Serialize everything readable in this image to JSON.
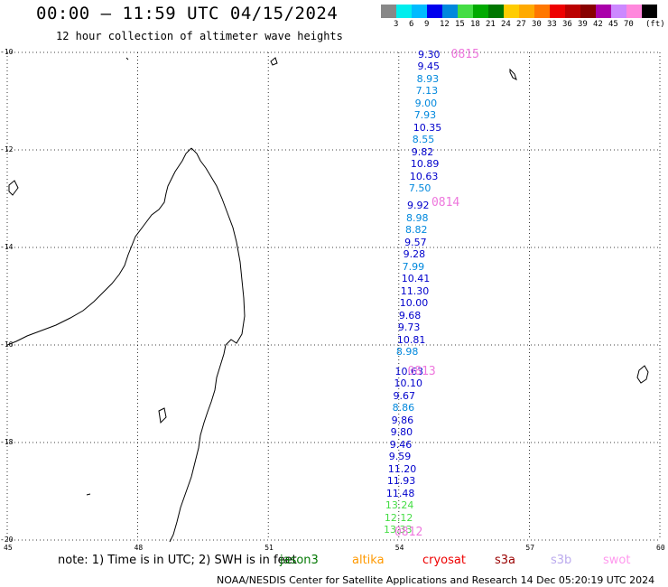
{
  "header": {
    "title": "00:00 — 11:59 UTC 04/15/2024",
    "subtitle": "12 hour collection of altimeter wave heights"
  },
  "scale": {
    "colors": [
      "#888888",
      "#00eeee",
      "#00bbff",
      "#0000ee",
      "#0088dd",
      "#44dd44",
      "#00aa00",
      "#007700",
      "#ffcc00",
      "#ffaa00",
      "#ff7700",
      "#ee0000",
      "#bb0000",
      "#880000",
      "#aa00aa",
      "#cc88ff",
      "#ff88dd",
      "#000000"
    ],
    "labels": [
      "3",
      "6",
      "9",
      "12",
      "15",
      "18",
      "21",
      "24",
      "27",
      "30",
      "33",
      "36",
      "39",
      "42",
      "45",
      "70",
      "(ft)"
    ]
  },
  "axes": {
    "x_ticks": [
      "45",
      "48",
      "51",
      "54",
      "57",
      "60"
    ],
    "y_ticks": [
      "-10",
      "-12",
      "-14",
      "-16",
      "-18",
      "-20"
    ]
  },
  "map_data": {
    "lon_range": [
      45,
      60
    ],
    "lat_range": [
      -20,
      -10
    ],
    "pass_labels": [
      {
        "text": "0815",
        "lon": 55.2,
        "lat": -10.05
      },
      {
        "text": "0814",
        "lon": 54.75,
        "lat": -13.1
      },
      {
        "text": "0813",
        "lon": 54.2,
        "lat": -16.55
      },
      {
        "text": "0812",
        "lon": 53.9,
        "lat": -19.85
      }
    ],
    "swh_points": [
      {
        "v": "9.30",
        "lon": 54.98,
        "lat": -10.05,
        "c": "#0000cc"
      },
      {
        "v": "9.45",
        "lon": 54.97,
        "lat": -10.3,
        "c": "#0000cc"
      },
      {
        "v": "8.93",
        "lon": 54.95,
        "lat": -10.55,
        "c": "#0088dd"
      },
      {
        "v": "7.13",
        "lon": 54.93,
        "lat": -10.8,
        "c": "#0088dd"
      },
      {
        "v": "9.00",
        "lon": 54.91,
        "lat": -11.05,
        "c": "#0088dd"
      },
      {
        "v": "7.93",
        "lon": 54.89,
        "lat": -11.3,
        "c": "#0088dd"
      },
      {
        "v": "10.35",
        "lon": 54.87,
        "lat": -11.55,
        "c": "#0000cc"
      },
      {
        "v": "8.55",
        "lon": 54.85,
        "lat": -11.8,
        "c": "#0088dd"
      },
      {
        "v": "9.82",
        "lon": 54.83,
        "lat": -12.05,
        "c": "#0000cc"
      },
      {
        "v": "10.89",
        "lon": 54.81,
        "lat": -12.3,
        "c": "#0000cc"
      },
      {
        "v": "10.63",
        "lon": 54.79,
        "lat": -12.55,
        "c": "#0000cc"
      },
      {
        "v": "7.50",
        "lon": 54.77,
        "lat": -12.8,
        "c": "#0088dd"
      },
      {
        "v": "9.92",
        "lon": 54.73,
        "lat": -13.15,
        "c": "#0000cc"
      },
      {
        "v": "8.98",
        "lon": 54.71,
        "lat": -13.4,
        "c": "#0088dd"
      },
      {
        "v": "8.82",
        "lon": 54.69,
        "lat": -13.65,
        "c": "#0088dd"
      },
      {
        "v": "9.57",
        "lon": 54.67,
        "lat": -13.9,
        "c": "#0000cc"
      },
      {
        "v": "9.28",
        "lon": 54.64,
        "lat": -14.15,
        "c": "#0000cc"
      },
      {
        "v": "7.99",
        "lon": 54.62,
        "lat": -14.4,
        "c": "#0088dd"
      },
      {
        "v": "10.41",
        "lon": 54.6,
        "lat": -14.65,
        "c": "#0000cc"
      },
      {
        "v": "11.30",
        "lon": 54.58,
        "lat": -14.9,
        "c": "#0000cc"
      },
      {
        "v": "10.00",
        "lon": 54.56,
        "lat": -15.15,
        "c": "#0000cc"
      },
      {
        "v": "9.68",
        "lon": 54.54,
        "lat": -15.4,
        "c": "#0000cc"
      },
      {
        "v": "9.73",
        "lon": 54.52,
        "lat": -15.65,
        "c": "#0000cc"
      },
      {
        "v": "10.81",
        "lon": 54.5,
        "lat": -15.9,
        "c": "#0000cc"
      },
      {
        "v": "8.98",
        "lon": 54.48,
        "lat": -16.15,
        "c": "#0088dd"
      },
      {
        "v": "10.63",
        "lon": 54.45,
        "lat": -16.55,
        "c": "#0000cc"
      },
      {
        "v": "10.10",
        "lon": 54.43,
        "lat": -16.8,
        "c": "#0000cc"
      },
      {
        "v": "9.67",
        "lon": 54.41,
        "lat": -17.05,
        "c": "#0000cc"
      },
      {
        "v": "8.86",
        "lon": 54.39,
        "lat": -17.3,
        "c": "#0088dd"
      },
      {
        "v": "9.86",
        "lon": 54.37,
        "lat": -17.55,
        "c": "#0000cc"
      },
      {
        "v": "9.80",
        "lon": 54.35,
        "lat": -17.8,
        "c": "#0000cc"
      },
      {
        "v": "9.46",
        "lon": 54.33,
        "lat": -18.05,
        "c": "#0000cc"
      },
      {
        "v": "9.59",
        "lon": 54.31,
        "lat": -18.3,
        "c": "#0000cc"
      },
      {
        "v": "11.20",
        "lon": 54.29,
        "lat": -18.55,
        "c": "#0000cc"
      },
      {
        "v": "11.93",
        "lon": 54.27,
        "lat": -18.8,
        "c": "#0000cc"
      },
      {
        "v": "11.48",
        "lon": 54.25,
        "lat": -19.05,
        "c": "#0000cc"
      },
      {
        "v": "13.24",
        "lon": 54.23,
        "lat": -19.3,
        "c": "#44dd44"
      },
      {
        "v": "12.12",
        "lon": 54.21,
        "lat": -19.55,
        "c": "#44dd44"
      },
      {
        "v": "13.33",
        "lon": 54.19,
        "lat": -19.8,
        "c": "#44dd44"
      }
    ]
  },
  "note": {
    "text": "note: 1) Time is in UTC; 2) SWH is in feet",
    "satellites": [
      {
        "name": "jason3",
        "color": "#007700"
      },
      {
        "name": "altika",
        "color": "#ff9900"
      },
      {
        "name": "cryosat",
        "color": "#ee0000"
      },
      {
        "name": "s3a",
        "color": "#990000"
      },
      {
        "name": "s3b",
        "color": "#bbaaee"
      },
      {
        "name": "swot",
        "color": "#ff99ee"
      }
    ]
  },
  "footer": "NOAA/NESDIS Center for Satellite Applications and Research   14 Dec 05:20:19 UTC 2024"
}
